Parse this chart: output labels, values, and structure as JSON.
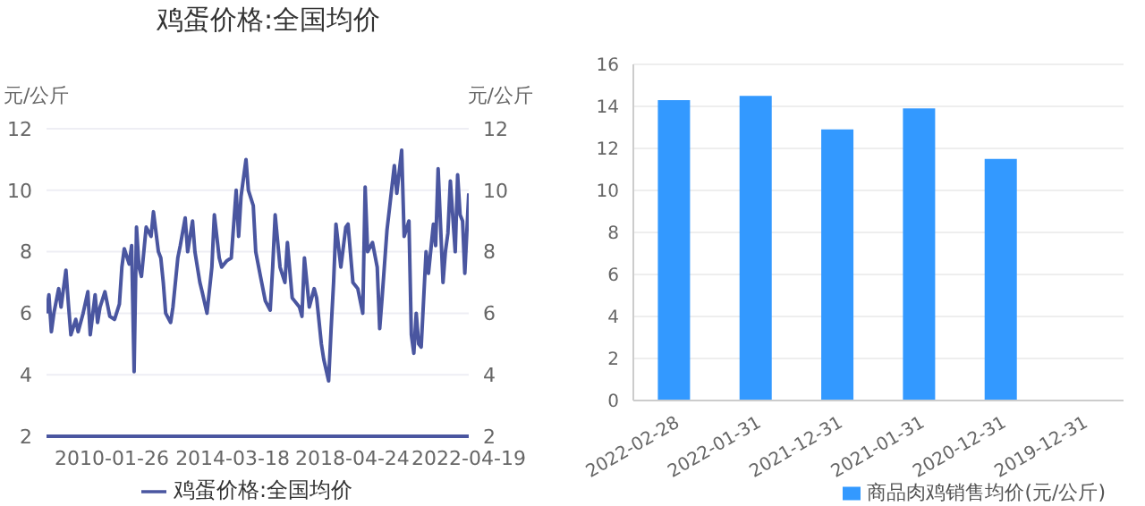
{
  "chart_data": [
    {
      "type": "line",
      "title": "鸡蛋价格:全国均价",
      "ylabel": "元/公斤",
      "y2label": "元/公斤",
      "xlim": [
        "2007-11",
        "2022-04-19"
      ],
      "xticks": [
        "2010-01-26",
        "2014-03-18",
        "2018-04-24",
        "2022-04-19"
      ],
      "ylim": [
        2,
        12
      ],
      "yticks": [
        2,
        4,
        6,
        8,
        10,
        12
      ],
      "y2lim": [
        2,
        12
      ],
      "y2ticks": [
        2,
        4,
        6,
        8,
        10,
        12
      ],
      "grid": "y",
      "legend": "bottom",
      "marker": "none",
      "x": [
        "2007-11",
        "2007-12",
        "2008-01",
        "2008-02",
        "2008-04",
        "2008-05",
        "2008-07",
        "2008-08",
        "2008-09",
        "2008-11",
        "2008-12",
        "2009-02",
        "2009-04",
        "2009-05",
        "2009-07",
        "2009-08",
        "2009-09",
        "2009-11",
        "2010-01",
        "2010-03",
        "2010-05",
        "2010-06",
        "2010-07",
        "2010-09",
        "2010-10",
        "2010-11",
        "2010-12",
        "2011-01",
        "2011-02",
        "2011-04",
        "2011-06",
        "2011-07",
        "2011-09",
        "2011-10",
        "2011-11",
        "2011-12",
        "2012-02",
        "2012-03",
        "2012-05",
        "2012-06",
        "2012-08",
        "2012-09",
        "2012-11",
        "2012-12",
        "2013-02",
        "2013-03",
        "2013-05",
        "2013-07",
        "2013-08",
        "2013-10",
        "2013-11",
        "2014-01",
        "2014-03",
        "2014-05",
        "2014-06",
        "2014-07",
        "2014-09",
        "2014-10",
        "2014-12",
        "2015-01",
        "2015-03",
        "2015-05",
        "2015-07",
        "2015-08",
        "2015-09",
        "2015-11",
        "2016-01",
        "2016-02",
        "2016-04",
        "2016-05",
        "2016-07",
        "2016-08",
        "2016-09",
        "2016-11",
        "2017-01",
        "2017-02",
        "2017-04",
        "2017-05",
        "2017-07",
        "2017-08",
        "2017-09",
        "2017-10",
        "2017-12",
        "2018-02",
        "2018-03",
        "2018-05",
        "2018-06",
        "2018-07",
        "2018-09",
        "2018-10",
        "2018-11",
        "2019-01",
        "2019-03",
        "2019-04",
        "2019-05",
        "2019-07",
        "2019-08",
        "2019-10",
        "2019-11",
        "2020-01",
        "2020-02",
        "2020-04",
        "2020-05",
        "2020-06",
        "2020-07",
        "2020-08",
        "2020-09",
        "2020-11",
        "2020-12",
        "2021-02",
        "2021-03",
        "2021-04",
        "2021-06",
        "2021-07",
        "2021-08",
        "2021-09",
        "2021-11",
        "2021-12",
        "2022-01",
        "2022-02",
        "2022-03",
        "2022-04-19"
      ],
      "series": [
        {
          "name": "鸡蛋价格:全国均价",
          "color": "#4a56a0",
          "values": [
            6.0,
            6.6,
            5.4,
            6.0,
            6.8,
            6.2,
            7.4,
            6.3,
            5.3,
            5.8,
            5.4,
            6.0,
            6.7,
            5.3,
            6.6,
            5.7,
            6.2,
            6.7,
            5.9,
            5.8,
            6.3,
            7.5,
            8.1,
            7.6,
            8.2,
            4.1,
            8.8,
            7.5,
            7.2,
            8.8,
            8.5,
            9.3,
            8.0,
            7.8,
            7.0,
            6.0,
            5.7,
            6.2,
            7.8,
            8.2,
            9.1,
            8.0,
            9.0,
            8.0,
            7.0,
            6.7,
            6.0,
            7.5,
            9.2,
            7.8,
            7.5,
            7.7,
            7.8,
            10.0,
            8.5,
            9.8,
            11.0,
            10.0,
            9.5,
            8.0,
            7.2,
            6.4,
            6.1,
            7.5,
            9.2,
            7.5,
            7.0,
            8.3,
            6.5,
            6.4,
            6.2,
            5.9,
            7.8,
            6.2,
            6.8,
            6.5,
            5.0,
            4.5,
            3.8,
            5.5,
            7.0,
            8.9,
            7.5,
            8.8,
            8.9,
            7.0,
            6.9,
            6.8,
            6.0,
            10.1,
            8.0,
            8.3,
            7.5,
            5.5,
            6.5,
            8.7,
            9.4,
            10.8,
            9.9,
            11.3,
            8.5,
            9.0,
            5.3,
            4.7,
            6.0,
            5.0,
            4.9,
            8.0,
            7.3,
            8.9,
            8.2,
            10.7,
            7.0,
            8.0,
            8.6,
            10.3,
            8.0,
            10.5,
            9.2,
            9.0,
            7.3,
            9.9
          ]
        }
      ]
    },
    {
      "type": "bar",
      "categories": [
        "2022-02-28",
        "2022-01-31",
        "2021-12-31",
        "2021-01-31",
        "2020-12-31",
        "2019-12-31"
      ],
      "ylim": [
        0,
        16
      ],
      "yticks": [
        0,
        2,
        4,
        6,
        8,
        10,
        12,
        14,
        16
      ],
      "grid": "y",
      "legend": "bottom right",
      "series": [
        {
          "name": "商品肉鸡销售均价(元/公斤)",
          "color": "#3399ff",
          "values": [
            14.3,
            14.5,
            12.9,
            13.9,
            11.5,
            null
          ]
        }
      ]
    }
  ]
}
